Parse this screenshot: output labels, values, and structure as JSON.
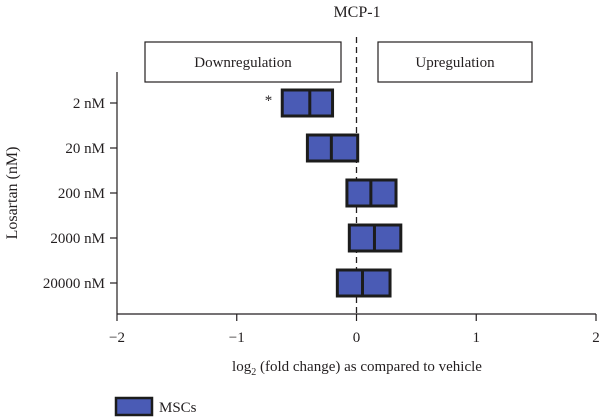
{
  "chart_data": {
    "type": "box",
    "title": "MCP-1",
    "xlabel": {
      "prefix": "log",
      "subscript": "2",
      "suffix": " (fold change) as compared to vehicle"
    },
    "ylabel": "Losartan (nM)",
    "xlim": [
      -2,
      2
    ],
    "xticks": [
      -2,
      -1,
      0,
      1,
      2
    ],
    "xtick_labels": [
      "−2",
      "−1",
      "0",
      "1",
      "2"
    ],
    "reference_line": {
      "x": 0,
      "style": "dashed"
    },
    "annotation_boxes": [
      {
        "label": "Downregulation",
        "side": "left"
      },
      {
        "label": "Upregulation",
        "side": "right"
      }
    ],
    "categories": [
      "2 nM",
      "20 nM",
      "200 nM",
      "2000 nM",
      "20000 nM"
    ],
    "series": [
      {
        "name": "MSCs",
        "color": "#4a5bb5",
        "boxes": [
          {
            "low": -0.62,
            "median": -0.39,
            "high": -0.2
          },
          {
            "low": -0.41,
            "median": -0.21,
            "high": 0.01
          },
          {
            "low": -0.08,
            "median": 0.12,
            "high": 0.33
          },
          {
            "low": -0.06,
            "median": 0.15,
            "high": 0.37
          },
          {
            "low": -0.16,
            "median": 0.05,
            "high": 0.28
          }
        ]
      }
    ],
    "significance": [
      {
        "category": "2 nM",
        "marker": "*"
      }
    ],
    "legend": {
      "placement": "bottom-left",
      "entries": [
        "MSCs"
      ]
    }
  }
}
